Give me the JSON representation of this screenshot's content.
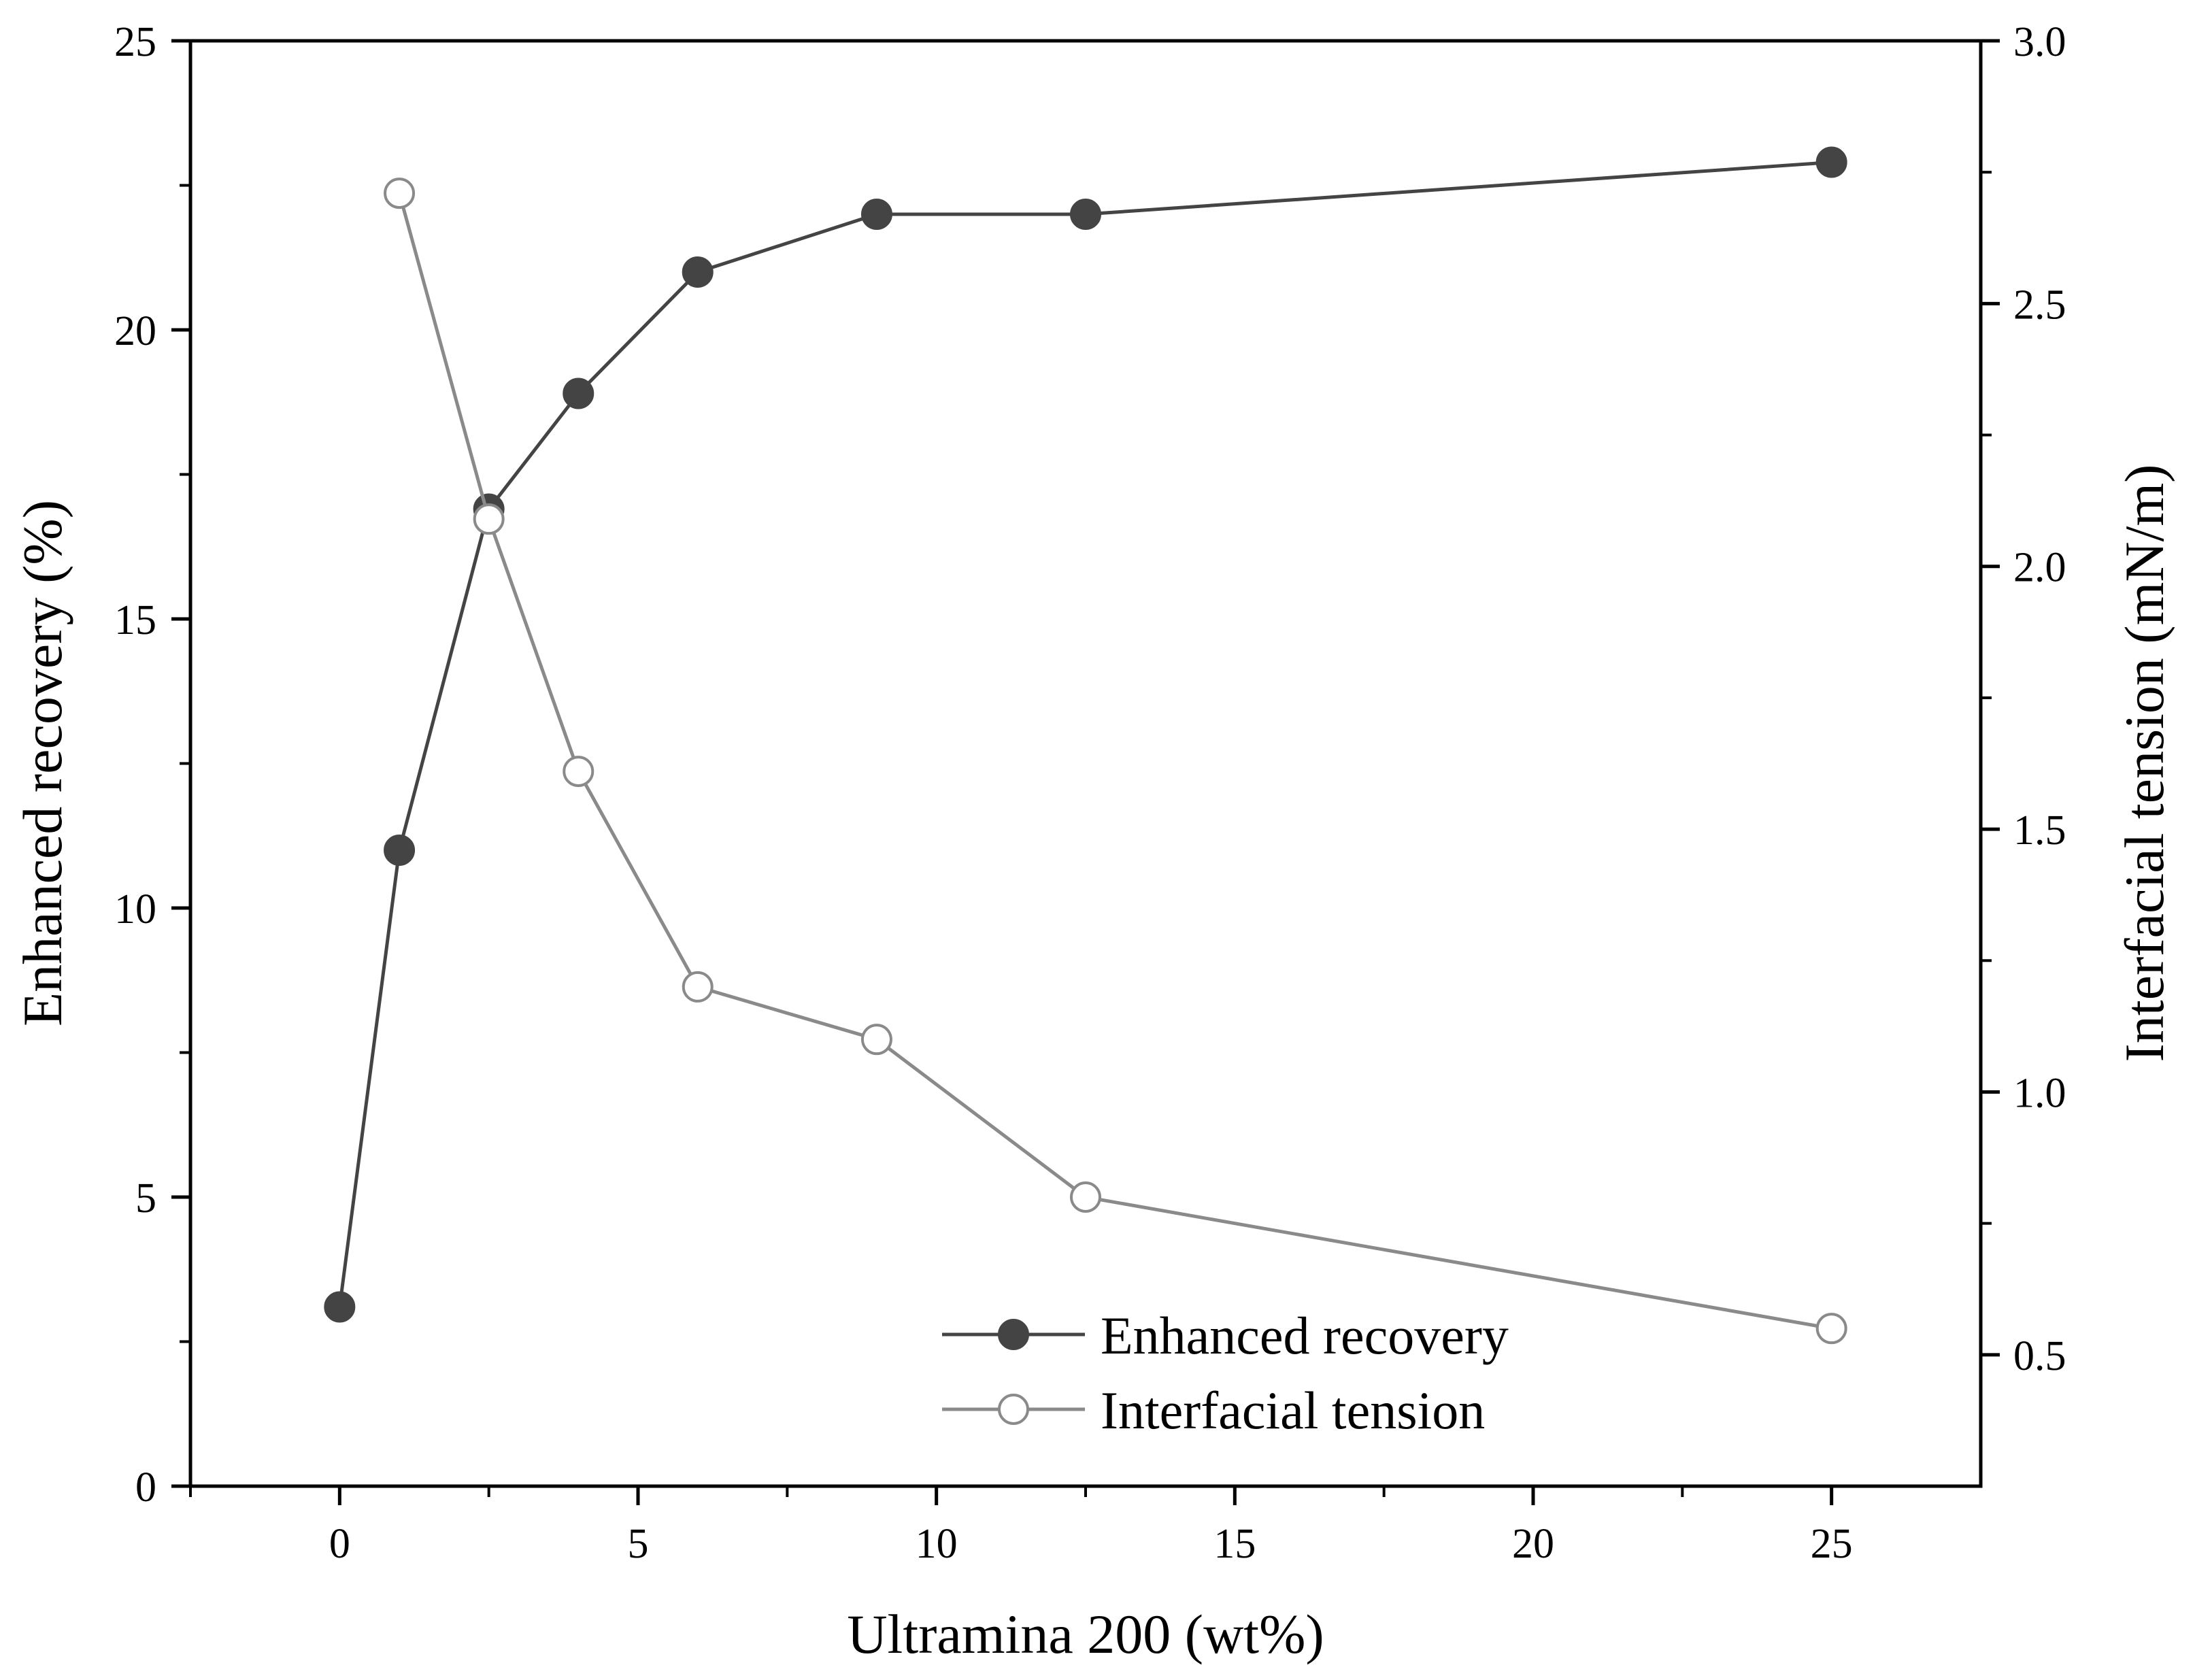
{
  "chart_data": {
    "type": "line",
    "title": "",
    "x": [
      0,
      1,
      2.5,
      4,
      6,
      9,
      12.5,
      25
    ],
    "xlabel": "Ultramina 200 (wt%)",
    "ylabel": "Enhanced recovery (%)",
    "y2label": "Interfacial tension (mN/m)",
    "xlim": [
      -2.5,
      27.5
    ],
    "ylim": [
      0,
      25
    ],
    "y2lim": [
      0.25,
      3.0
    ],
    "xticks": [
      0,
      5,
      10,
      15,
      20,
      25
    ],
    "yticks": [
      0,
      5,
      10,
      15,
      20,
      25
    ],
    "y2ticks": [
      0.5,
      1.0,
      1.5,
      2.0,
      2.5,
      3.0
    ],
    "xtick_labels": [
      "0",
      "5",
      "10",
      "15",
      "20",
      "25"
    ],
    "ytick_labels": [
      "0",
      "5",
      "10",
      "15",
      "20",
      "25"
    ],
    "y2tick_labels": [
      "0.5",
      "1.0",
      "1.5",
      "2.0",
      "2.5",
      "3.0"
    ],
    "series": [
      {
        "name": "Enhanced recovery",
        "axis": "left",
        "marker": "filled-circle",
        "color": "#444444",
        "x": [
          0,
          1,
          2.5,
          4,
          6,
          9,
          12.5,
          25
        ],
        "values": [
          3.1,
          11.0,
          16.9,
          18.9,
          21.0,
          22.0,
          22.0,
          22.9
        ]
      },
      {
        "name": "Interfacial tension",
        "axis": "right",
        "marker": "open-circle",
        "color": "#8a8a8a",
        "x": [
          1,
          2.5,
          4,
          6,
          9,
          12.5,
          25
        ],
        "values": [
          2.71,
          2.09,
          1.61,
          1.2,
          1.1,
          0.8,
          0.55
        ]
      }
    ],
    "legend": {
      "position": "bottom-right",
      "entries": [
        "Enhanced recovery",
        "Interfacial tension"
      ]
    }
  }
}
